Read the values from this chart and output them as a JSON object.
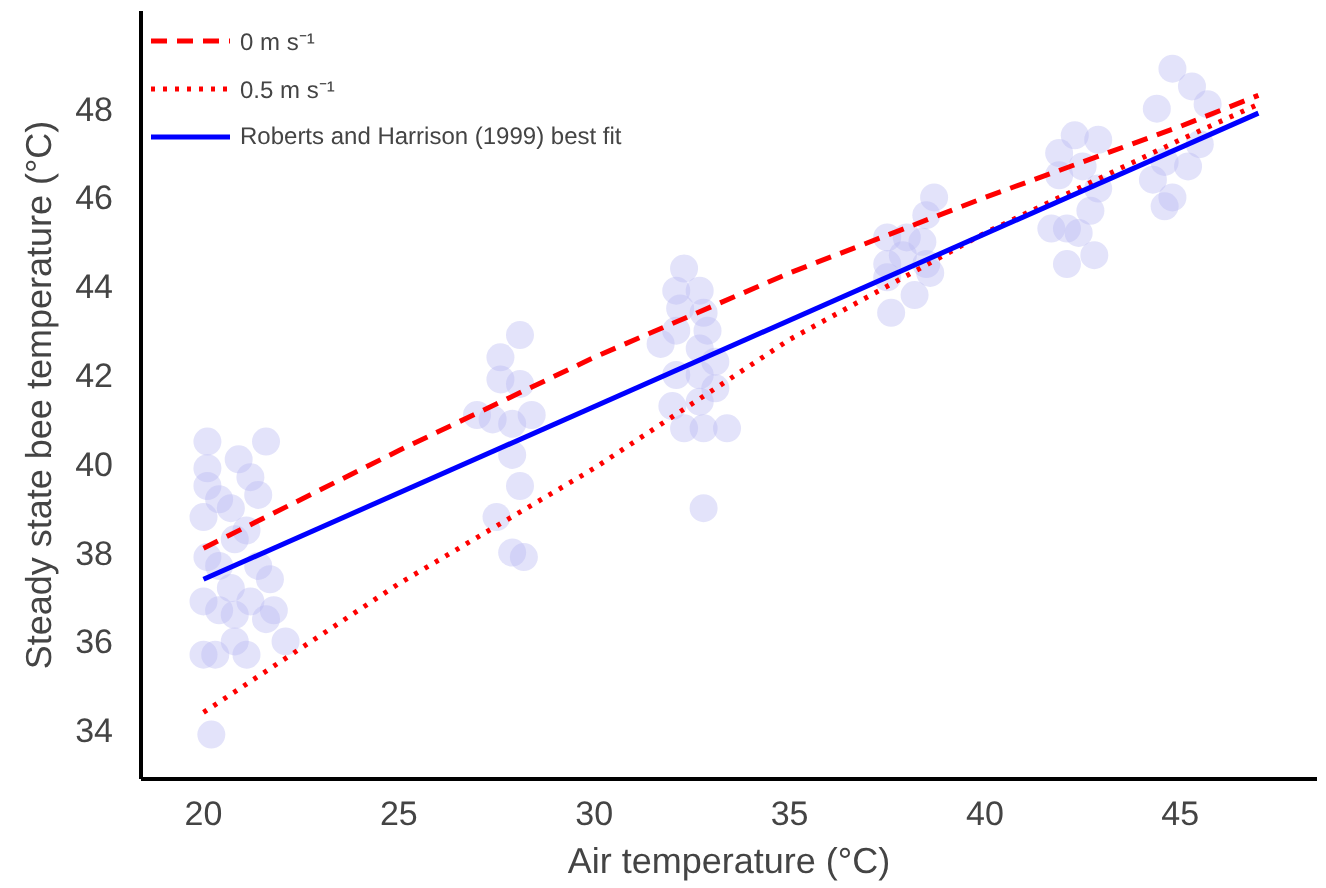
{
  "chart_data": {
    "type": "line",
    "xlabel": "Air temperature (°C)",
    "ylabel": "Steady state bee temperature (°C)",
    "xlim": [
      18.4,
      48.5
    ],
    "ylim": [
      32.9,
      50.2
    ],
    "xticks": [
      20,
      25,
      30,
      35,
      40,
      45
    ],
    "yticks": [
      34,
      36,
      38,
      40,
      42,
      44,
      46,
      48
    ],
    "grid": false,
    "legend": "top left",
    "marker": "none",
    "series": [
      {
        "type": "scatter",
        "marker": "circle",
        "color": "#b9b9f2",
        "x": [
          20.1,
          21.6,
          20.1,
          20.9,
          21.2,
          20.1,
          20.4,
          21.4,
          20.0,
          20.7,
          21.1,
          20.8,
          20.1,
          20.4,
          21.4,
          21.7,
          20.7,
          20.0,
          20.4,
          21.2,
          20.8,
          21.8,
          21.6,
          20.8,
          22.1,
          20.0,
          20.3,
          21.1,
          20.2,
          27.6,
          28.1,
          27.6,
          28.1,
          27.0,
          27.4,
          27.9,
          28.4,
          27.9,
          28.1,
          27.5,
          27.9,
          28.2,
          32.3,
          32.1,
          32.7,
          32.2,
          32.8,
          31.7,
          32.1,
          32.9,
          32.7,
          33.1,
          32.1,
          32.7,
          32.0,
          32.7,
          33.1,
          32.3,
          32.8,
          33.4,
          32.8,
          38.7,
          38.5,
          37.5,
          38.0,
          38.4,
          37.5,
          37.9,
          38.5,
          38.6,
          37.5,
          38.2,
          37.6,
          42.3,
          42.9,
          41.9,
          42.5,
          41.9,
          42.9,
          42.7,
          41.7,
          42.1,
          42.4,
          42.1,
          42.8,
          44.8,
          45.3,
          45.7,
          44.4,
          45.5,
          44.6,
          45.2,
          44.3,
          44.8,
          44.6
        ],
        "values": [
          40.5,
          40.5,
          39.9,
          40.1,
          39.7,
          39.5,
          39.2,
          39.3,
          38.8,
          39.0,
          38.5,
          38.3,
          37.9,
          37.7,
          37.7,
          37.4,
          37.2,
          36.9,
          36.7,
          36.9,
          36.6,
          36.7,
          36.5,
          36.0,
          36.0,
          35.7,
          35.7,
          35.7,
          33.9,
          42.4,
          42.9,
          41.9,
          41.8,
          41.1,
          41.0,
          40.9,
          41.1,
          40.2,
          39.5,
          38.8,
          38.0,
          37.9,
          44.4,
          43.9,
          43.9,
          43.5,
          43.4,
          42.7,
          43.0,
          43.0,
          42.6,
          42.3,
          42.0,
          42.0,
          41.3,
          41.4,
          41.7,
          40.8,
          40.8,
          40.8,
          39.0,
          46.0,
          45.6,
          45.1,
          45.1,
          45.0,
          44.5,
          44.7,
          44.5,
          44.3,
          44.2,
          43.8,
          43.4,
          47.4,
          47.3,
          47.0,
          46.7,
          46.5,
          46.2,
          45.7,
          45.3,
          45.3,
          45.2,
          44.5,
          44.7,
          48.9,
          48.5,
          48.1,
          48.0,
          47.2,
          46.8,
          46.7,
          46.4,
          46.0,
          45.8
        ]
      },
      {
        "name": "0 m s⁻¹",
        "color": "#ff0000",
        "line_style": "dashed",
        "x": [
          20,
          25,
          30,
          35,
          40,
          45,
          47
        ],
        "values": [
          38.1,
          40.3,
          42.4,
          44.3,
          46.0,
          47.6,
          48.3
        ]
      },
      {
        "name": "0.5 m s⁻¹",
        "color": "#ff0000",
        "line_style": "dotted",
        "x": [
          20,
          25,
          30,
          35,
          40,
          45,
          47
        ],
        "values": [
          34.4,
          37.3,
          39.9,
          42.8,
          45.2,
          47.3,
          48.1
        ]
      },
      {
        "name": "Roberts and Harrison (1999) best fit",
        "color": "#0000ff",
        "line_style": "solid",
        "x": [
          20,
          47
        ],
        "values": [
          37.4,
          47.9
        ]
      }
    ]
  }
}
